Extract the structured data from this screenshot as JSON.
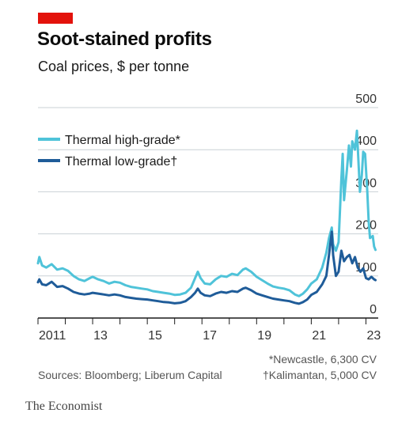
{
  "header": {
    "title": "Soot-stained profits",
    "subtitle": "Coal prices, $ per tonne",
    "accent_color": "#e3120b"
  },
  "footer": {
    "sources": "Sources: Bloomberg; Liberum Capital",
    "note1": "*Newcastle, 6,300 CV",
    "note2": "†Kalimantan, 5,000 CV",
    "brand": "The Economist"
  },
  "chart_data": {
    "type": "line",
    "title": "Soot-stained profits",
    "subtitle": "Coal prices, $ per tonne",
    "ylim": [
      0,
      500
    ],
    "yticks": [
      0,
      100,
      200,
      300,
      400,
      500
    ],
    "xlim": [
      2011.0,
      2023.45
    ],
    "xtick_labels": [
      {
        "x": 2011,
        "label": "2011"
      },
      {
        "x": 2013,
        "label": "13"
      },
      {
        "x": 2015,
        "label": "15"
      },
      {
        "x": 2017,
        "label": "17"
      },
      {
        "x": 2019,
        "label": "19"
      },
      {
        "x": 2021,
        "label": "21"
      },
      {
        "x": 2023,
        "label": "23"
      }
    ],
    "grid": "horizontal",
    "legend_position": "top-left",
    "series": [
      {
        "name": "Thermal high-grade*",
        "color": "#4fc3d9",
        "points": [
          [
            2011.0,
            130
          ],
          [
            2011.05,
            145
          ],
          [
            2011.15,
            125
          ],
          [
            2011.3,
            120
          ],
          [
            2011.5,
            128
          ],
          [
            2011.7,
            115
          ],
          [
            2011.9,
            118
          ],
          [
            2012.1,
            112
          ],
          [
            2012.3,
            100
          ],
          [
            2012.5,
            92
          ],
          [
            2012.7,
            88
          ],
          [
            2012.9,
            95
          ],
          [
            2013.0,
            98
          ],
          [
            2013.2,
            92
          ],
          [
            2013.4,
            88
          ],
          [
            2013.6,
            82
          ],
          [
            2013.8,
            86
          ],
          [
            2014.0,
            84
          ],
          [
            2014.2,
            78
          ],
          [
            2014.4,
            74
          ],
          [
            2014.6,
            72
          ],
          [
            2014.8,
            70
          ],
          [
            2015.0,
            68
          ],
          [
            2015.2,
            64
          ],
          [
            2015.4,
            62
          ],
          [
            2015.6,
            60
          ],
          [
            2015.8,
            58
          ],
          [
            2016.0,
            55
          ],
          [
            2016.2,
            56
          ],
          [
            2016.4,
            60
          ],
          [
            2016.6,
            72
          ],
          [
            2016.75,
            95
          ],
          [
            2016.85,
            110
          ],
          [
            2016.95,
            95
          ],
          [
            2017.1,
            82
          ],
          [
            2017.3,
            80
          ],
          [
            2017.5,
            92
          ],
          [
            2017.7,
            100
          ],
          [
            2017.9,
            98
          ],
          [
            2018.1,
            105
          ],
          [
            2018.3,
            102
          ],
          [
            2018.5,
            115
          ],
          [
            2018.6,
            118
          ],
          [
            2018.8,
            110
          ],
          [
            2019.0,
            98
          ],
          [
            2019.2,
            90
          ],
          [
            2019.4,
            82
          ],
          [
            2019.6,
            75
          ],
          [
            2019.8,
            72
          ],
          [
            2020.0,
            70
          ],
          [
            2020.2,
            66
          ],
          [
            2020.4,
            56
          ],
          [
            2020.55,
            52
          ],
          [
            2020.7,
            58
          ],
          [
            2020.85,
            68
          ],
          [
            2021.0,
            82
          ],
          [
            2021.2,
            92
          ],
          [
            2021.4,
            120
          ],
          [
            2021.55,
            155
          ],
          [
            2021.65,
            190
          ],
          [
            2021.75,
            215
          ],
          [
            2021.8,
            175
          ],
          [
            2021.9,
            160
          ],
          [
            2022.0,
            180
          ],
          [
            2022.1,
            330
          ],
          [
            2022.15,
            390
          ],
          [
            2022.2,
            280
          ],
          [
            2022.3,
            350
          ],
          [
            2022.38,
            410
          ],
          [
            2022.45,
            360
          ],
          [
            2022.5,
            420
          ],
          [
            2022.6,
            400
          ],
          [
            2022.67,
            445
          ],
          [
            2022.72,
            380
          ],
          [
            2022.78,
            300
          ],
          [
            2022.85,
            340
          ],
          [
            2022.9,
            395
          ],
          [
            2022.97,
            390
          ],
          [
            2023.05,
            300
          ],
          [
            2023.1,
            230
          ],
          [
            2023.15,
            190
          ],
          [
            2023.25,
            195
          ],
          [
            2023.3,
            170
          ],
          [
            2023.35,
            162
          ]
        ]
      },
      {
        "name": "Thermal low-grade†",
        "color": "#1f5c99",
        "points": [
          [
            2011.0,
            85
          ],
          [
            2011.05,
            92
          ],
          [
            2011.15,
            80
          ],
          [
            2011.3,
            78
          ],
          [
            2011.5,
            86
          ],
          [
            2011.7,
            74
          ],
          [
            2011.9,
            76
          ],
          [
            2012.1,
            70
          ],
          [
            2012.3,
            62
          ],
          [
            2012.5,
            58
          ],
          [
            2012.7,
            56
          ],
          [
            2012.9,
            58
          ],
          [
            2013.0,
            60
          ],
          [
            2013.2,
            58
          ],
          [
            2013.4,
            56
          ],
          [
            2013.6,
            54
          ],
          [
            2013.8,
            56
          ],
          [
            2014.0,
            54
          ],
          [
            2014.2,
            50
          ],
          [
            2014.4,
            48
          ],
          [
            2014.6,
            46
          ],
          [
            2014.8,
            45
          ],
          [
            2015.0,
            44
          ],
          [
            2015.2,
            42
          ],
          [
            2015.4,
            40
          ],
          [
            2015.6,
            38
          ],
          [
            2015.8,
            37
          ],
          [
            2016.0,
            35
          ],
          [
            2016.2,
            36
          ],
          [
            2016.4,
            40
          ],
          [
            2016.6,
            50
          ],
          [
            2016.75,
            60
          ],
          [
            2016.85,
            70
          ],
          [
            2016.95,
            60
          ],
          [
            2017.1,
            54
          ],
          [
            2017.3,
            52
          ],
          [
            2017.5,
            58
          ],
          [
            2017.7,
            62
          ],
          [
            2017.9,
            60
          ],
          [
            2018.1,
            64
          ],
          [
            2018.3,
            62
          ],
          [
            2018.5,
            70
          ],
          [
            2018.6,
            72
          ],
          [
            2018.8,
            66
          ],
          [
            2019.0,
            58
          ],
          [
            2019.2,
            54
          ],
          [
            2019.4,
            50
          ],
          [
            2019.6,
            46
          ],
          [
            2019.8,
            44
          ],
          [
            2020.0,
            42
          ],
          [
            2020.2,
            40
          ],
          [
            2020.4,
            36
          ],
          [
            2020.55,
            34
          ],
          [
            2020.7,
            38
          ],
          [
            2020.85,
            44
          ],
          [
            2021.0,
            55
          ],
          [
            2021.2,
            62
          ],
          [
            2021.4,
            80
          ],
          [
            2021.55,
            100
          ],
          [
            2021.65,
            150
          ],
          [
            2021.75,
            205
          ],
          [
            2021.8,
            150
          ],
          [
            2021.9,
            100
          ],
          [
            2022.0,
            110
          ],
          [
            2022.1,
            160
          ],
          [
            2022.2,
            135
          ],
          [
            2022.3,
            145
          ],
          [
            2022.4,
            150
          ],
          [
            2022.5,
            130
          ],
          [
            2022.6,
            145
          ],
          [
            2022.7,
            120
          ],
          [
            2022.8,
            110
          ],
          [
            2022.9,
            118
          ],
          [
            2023.0,
            95
          ],
          [
            2023.1,
            92
          ],
          [
            2023.2,
            98
          ],
          [
            2023.3,
            92
          ],
          [
            2023.35,
            90
          ]
        ]
      }
    ]
  }
}
